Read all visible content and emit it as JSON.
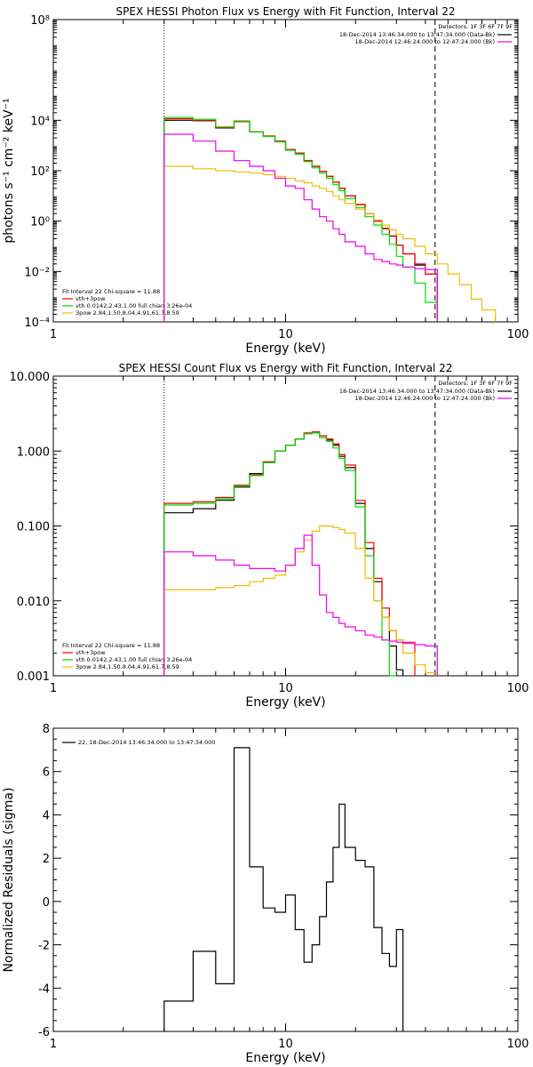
{
  "chart_data": [
    {
      "type": "line",
      "title": "SPEX HESSI Photon Flux vs Energy with Fit Function, Interval 22",
      "xlabel": "Energy (keV)",
      "ylabel": "photons s⁻¹ cm⁻² keV⁻¹",
      "xscale": "log",
      "yscale": "log",
      "xlim": [
        1,
        100
      ],
      "ylim": [
        0.0001,
        100000000
      ],
      "x_ticks": [
        {
          "value": 1,
          "label": "1"
        },
        {
          "value": 10,
          "label": "10"
        },
        {
          "value": 100,
          "label": "100"
        }
      ],
      "y_ticks": [
        {
          "value": 0.0001,
          "label": "10⁻⁴"
        },
        {
          "value": 0.01,
          "label": "10⁻²"
        },
        {
          "value": 1,
          "label": "10⁰"
        },
        {
          "value": 100,
          "label": "10²"
        },
        {
          "value": 10000,
          "label": "10⁴"
        },
        {
          "value": 100000000,
          "label": "10⁸"
        }
      ],
      "vlines": [
        {
          "x": 3,
          "style": "dotted"
        },
        {
          "x": 44,
          "style": "dashed"
        }
      ],
      "bin_edges": [
        3,
        4,
        5,
        6,
        7,
        8,
        9,
        10,
        11,
        12,
        13,
        14,
        15,
        16,
        17,
        18,
        20,
        22,
        24,
        26,
        28,
        30,
        32,
        36,
        40,
        45,
        50,
        56,
        63,
        70,
        80
      ],
      "series": [
        {
          "name": "data",
          "color": "#000000",
          "values": [
            10000,
            9600,
            5000,
            9000,
            3500,
            2300,
            1500,
            700,
            500,
            250,
            150,
            95,
            60,
            35,
            20,
            10,
            4.5,
            2,
            1,
            0.5,
            0.25,
            0.11,
            0.05,
            0.018,
            0.008,
            null,
            null,
            null,
            null,
            null
          ]
        },
        {
          "name": "vth+3pow",
          "color": "#ff0000",
          "values": [
            11500,
            10000,
            5200,
            9000,
            3500,
            2400,
            1500,
            700,
            500,
            255,
            150,
            95,
            60,
            35,
            20,
            10,
            4.6,
            2,
            1,
            0.52,
            0.26,
            0.11,
            0.05,
            0.02,
            0.008,
            null,
            null,
            null,
            null,
            null
          ]
        },
        {
          "name": "vth",
          "color": "#00dd00",
          "values": [
            13000,
            11000,
            5500,
            9500,
            3500,
            2300,
            1400,
            650,
            450,
            230,
            130,
            80,
            50,
            28,
            16,
            8,
            3.5,
            1.5,
            0.7,
            0.3,
            0.12,
            0.04,
            0.015,
            0.0035,
            0.0006,
            null,
            null,
            null,
            null,
            null
          ]
        },
        {
          "name": "3pow",
          "color": "#e8c000",
          "values": [
            150,
            120,
            100,
            90,
            80,
            70,
            60,
            50,
            40,
            33,
            25,
            20,
            15,
            10,
            7,
            5,
            3,
            2,
            1.1,
            0.7,
            0.45,
            0.3,
            0.2,
            0.1,
            0.05,
            0.02,
            0.008,
            0.003,
            0.0008,
            0.0003
          ]
        },
        {
          "name": "background",
          "color": "#ee00ee",
          "values": [
            2800,
            1500,
            600,
            250,
            150,
            100,
            50,
            25,
            20,
            7,
            3,
            1.5,
            1,
            0.5,
            0.3,
            0.15,
            0.1,
            0.05,
            0.03,
            0.025,
            0.02,
            0.018,
            0.015,
            0.013,
            0.012,
            null,
            null,
            null,
            null,
            null
          ]
        }
      ],
      "legend_right": {
        "header": "Detectors: 1F 3F 6F 7F 9F",
        "entries": [
          {
            "text": "18-Dec-2014 13:46:34.000 to 13:47:34.000 (Data-Bk)",
            "color": "#000000"
          },
          {
            "text": "18-Dec-2014 12:46:24.000 to 12:47:24.000 (Bk)",
            "color": "#ee00ee"
          }
        ]
      },
      "legend_left": {
        "header": "Fit Interval 22   Chi-square = 11.88",
        "entries": [
          {
            "text": "vth+3pow",
            "color": "#ff0000"
          },
          {
            "text": "vth 0.0142,2.43,1.00  full chian 3.26e-04",
            "color": "#00dd00"
          },
          {
            "text": "3pow 2.84,1.50,8.04,4.91,61.7,8.59",
            "color": "#e8c000"
          }
        ]
      }
    },
    {
      "type": "line",
      "title": "SPEX HESSI Count Flux vs Energy with Fit Function, Interval 22",
      "xlabel": "Energy (keV)",
      "ylabel": "",
      "xscale": "log",
      "yscale": "log",
      "xlim": [
        1,
        100
      ],
      "ylim": [
        0.001,
        10
      ],
      "x_ticks": [
        {
          "value": 1,
          "label": "1"
        },
        {
          "value": 10,
          "label": "10"
        },
        {
          "value": 100,
          "label": "100"
        }
      ],
      "y_ticks": [
        {
          "value": 0.001,
          "label": "0.001"
        },
        {
          "value": 0.01,
          "label": "0.010"
        },
        {
          "value": 0.1,
          "label": "0.100"
        },
        {
          "value": 1,
          "label": "1.000"
        },
        {
          "value": 10,
          "label": "10.000"
        }
      ],
      "vlines": [
        {
          "x": 3,
          "style": "dotted"
        },
        {
          "x": 44,
          "style": "dashed"
        }
      ],
      "bin_edges": [
        3,
        4,
        5,
        6,
        7,
        8,
        9,
        10,
        11,
        12,
        13,
        14,
        15,
        16,
        17,
        18,
        20,
        22,
        24,
        26,
        28,
        30,
        32,
        36,
        40,
        45,
        50
      ],
      "series": [
        {
          "name": "data",
          "color": "#000000",
          "values": [
            0.15,
            0.17,
            0.22,
            0.33,
            0.5,
            0.7,
            1.0,
            1.2,
            1.45,
            1.7,
            1.75,
            1.6,
            1.4,
            1.2,
            0.85,
            0.6,
            0.2,
            0.05,
            0.018,
            0.006,
            0.0025,
            0.0012,
            null,
            null,
            null,
            null
          ]
        },
        {
          "name": "vth+3pow",
          "color": "#ff0000",
          "values": [
            0.2,
            0.21,
            0.24,
            0.35,
            0.48,
            0.72,
            1.0,
            1.2,
            1.45,
            1.75,
            1.8,
            1.6,
            1.45,
            1.25,
            0.9,
            0.65,
            0.22,
            0.06,
            0.02,
            0.008,
            0.004,
            0.003,
            0.0028,
            null,
            null,
            null
          ]
        },
        {
          "name": "vth",
          "color": "#00dd00",
          "values": [
            0.19,
            0.2,
            0.23,
            0.34,
            0.47,
            0.7,
            1.0,
            1.2,
            1.45,
            1.7,
            1.75,
            1.5,
            1.35,
            1.1,
            0.8,
            0.55,
            0.18,
            0.04,
            0.01,
            0.003,
            0.001,
            null,
            null,
            null,
            null,
            null
          ]
        },
        {
          "name": "3pow",
          "color": "#e8c000",
          "values": [
            0.014,
            0.014,
            0.015,
            0.016,
            0.018,
            0.02,
            0.022,
            0.03,
            0.045,
            0.065,
            0.085,
            0.1,
            0.1,
            0.095,
            0.09,
            0.08,
            0.05,
            0.02,
            0.01,
            0.006,
            0.004,
            0.003,
            0.002,
            0.0014,
            0.0011,
            null
          ]
        },
        {
          "name": "background",
          "color": "#ee00ee",
          "values": [
            0.045,
            0.04,
            0.035,
            0.03,
            0.027,
            0.027,
            0.025,
            0.03,
            0.05,
            0.075,
            0.03,
            0.012,
            0.007,
            0.006,
            0.005,
            0.0045,
            0.004,
            0.0035,
            0.0033,
            0.003,
            0.0029,
            0.0028,
            0.0027,
            0.0026,
            0.0025,
            null
          ]
        }
      ],
      "legend_right": {
        "header": "Detectors: 1F 3F 6F 7F 9F",
        "entries": [
          {
            "text": "18-Dec-2014 13:46:34.000 to 13:47:34.000 (Data-Bk)",
            "color": "#000000"
          },
          {
            "text": "18-Dec-2014 12:46:24.000 to 12:47:24.000 (Bk)",
            "color": "#ee00ee"
          }
        ]
      },
      "legend_left": {
        "header": "Fit Interval 22   Chi-square = 11.88",
        "entries": [
          {
            "text": "vth+3pow",
            "color": "#ff0000"
          },
          {
            "text": "vth 0.0142,2.43,1.00  full chian 3.26e-04",
            "color": "#00dd00"
          },
          {
            "text": "3pow 2.84,1.50,8.04,4.91,61.7,8.59",
            "color": "#e8c000"
          }
        ]
      }
    },
    {
      "type": "line",
      "title": "",
      "xlabel": "Energy (keV)",
      "ylabel": "Normalized Residuals (sigma)",
      "xscale": "log",
      "yscale": "linear",
      "xlim": [
        1,
        100
      ],
      "ylim": [
        -6,
        8
      ],
      "x_ticks": [
        {
          "value": 1,
          "label": "1"
        },
        {
          "value": 10,
          "label": "10"
        },
        {
          "value": 100,
          "label": "100"
        }
      ],
      "y_ticks": [
        {
          "value": -6,
          "label": "-6"
        },
        {
          "value": -4,
          "label": "-4"
        },
        {
          "value": -2,
          "label": "-2"
        },
        {
          "value": 0,
          "label": "0"
        },
        {
          "value": 2,
          "label": "2"
        },
        {
          "value": 4,
          "label": "4"
        },
        {
          "value": 6,
          "label": "6"
        },
        {
          "value": 8,
          "label": "8"
        }
      ],
      "bin_edges": [
        3,
        4,
        5,
        6,
        7,
        8,
        9,
        10,
        11,
        12,
        13,
        14,
        15,
        16,
        17,
        18,
        20,
        22,
        24,
        26,
        28,
        30,
        32,
        36,
        40,
        45
      ],
      "series": [
        {
          "name": "22, 18-Dec-2014 13:46:34.000 to 13:47:34.000",
          "color": "#000000",
          "values": [
            -4.6,
            -2.3,
            -3.8,
            7.1,
            1.6,
            -0.3,
            -0.5,
            0.3,
            -1.3,
            -2.8,
            -2.0,
            -0.7,
            0.9,
            2.5,
            4.5,
            2.5,
            1.9,
            1.6,
            -1.2,
            -2.4,
            -3.0,
            -1.3,
            null,
            null,
            null
          ]
        }
      ]
    }
  ]
}
